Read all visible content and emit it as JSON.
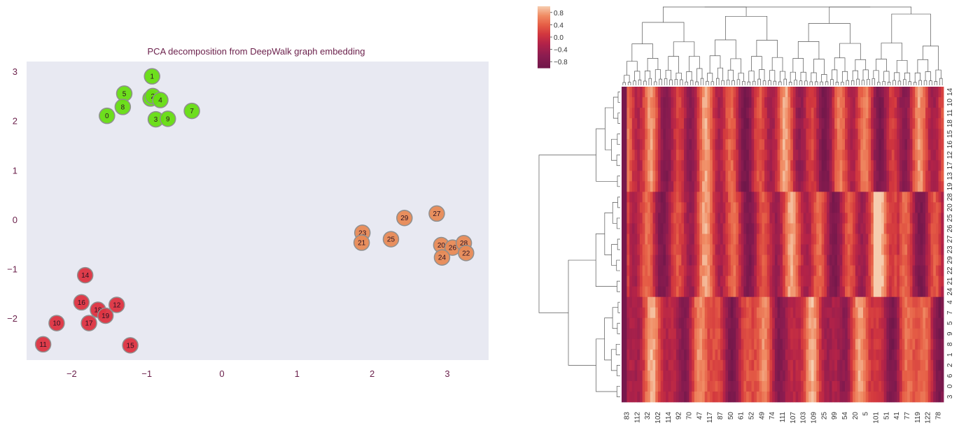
{
  "chart_data": [
    {
      "type": "scatter",
      "title": "PCA decomposition from DeepWalk graph embedding",
      "xlabel": "",
      "ylabel": "",
      "xlim": [
        -2.6,
        3.55
      ],
      "ylim": [
        -2.85,
        3.2
      ],
      "xticks": [
        -2,
        -1,
        0,
        1,
        2,
        3
      ],
      "yticks": [
        -2,
        -1,
        0,
        1,
        2,
        3
      ],
      "x_tick_labels": [
        "−2",
        "−1",
        "0",
        "1",
        "2",
        "3"
      ],
      "y_tick_labels": [
        "−2",
        "−1",
        "0",
        "1",
        "2",
        "3"
      ],
      "grid": false,
      "colors": {
        "cluster_a": "#66dd11",
        "cluster_b": "#dd3340",
        "cluster_c": "#e88a55",
        "plot_bg": "#e8e9f2",
        "text": "#6a1f4a"
      },
      "points": [
        {
          "label": "1",
          "x": -0.93,
          "y": 2.9,
          "cluster": "cluster_a"
        },
        {
          "label": "5",
          "x": -1.3,
          "y": 2.55,
          "cluster": "cluster_a"
        },
        {
          "label": "6",
          "x": -0.95,
          "y": 2.45,
          "cluster": "cluster_a"
        },
        {
          "label": "2",
          "x": -0.92,
          "y": 2.5,
          "cluster": "cluster_a"
        },
        {
          "label": "4",
          "x": -0.82,
          "y": 2.42,
          "cluster": "cluster_a"
        },
        {
          "label": "8",
          "x": -1.32,
          "y": 2.28,
          "cluster": "cluster_a"
        },
        {
          "label": "0",
          "x": -1.53,
          "y": 2.1,
          "cluster": "cluster_a"
        },
        {
          "label": "3",
          "x": -0.88,
          "y": 2.03,
          "cluster": "cluster_a"
        },
        {
          "label": "9",
          "x": -0.72,
          "y": 2.04,
          "cluster": "cluster_a"
        },
        {
          "label": "7",
          "x": -0.4,
          "y": 2.2,
          "cluster": "cluster_a"
        },
        {
          "label": "14",
          "x": -1.82,
          "y": -1.13,
          "cluster": "cluster_b"
        },
        {
          "label": "16",
          "x": -1.87,
          "y": -1.68,
          "cluster": "cluster_b"
        },
        {
          "label": "18",
          "x": -1.65,
          "y": -1.83,
          "cluster": "cluster_b"
        },
        {
          "label": "12",
          "x": -1.4,
          "y": -1.73,
          "cluster": "cluster_b"
        },
        {
          "label": "19",
          "x": -1.55,
          "y": -1.95,
          "cluster": "cluster_b"
        },
        {
          "label": "17",
          "x": -1.77,
          "y": -2.1,
          "cluster": "cluster_b"
        },
        {
          "label": "10",
          "x": -2.2,
          "y": -2.1,
          "cluster": "cluster_b"
        },
        {
          "label": "11",
          "x": -2.38,
          "y": -2.53,
          "cluster": "cluster_b"
        },
        {
          "label": "15",
          "x": -1.22,
          "y": -2.55,
          "cluster": "cluster_b"
        },
        {
          "label": "29",
          "x": 2.43,
          "y": 0.03,
          "cluster": "cluster_c"
        },
        {
          "label": "27",
          "x": 2.86,
          "y": 0.12,
          "cluster": "cluster_c"
        },
        {
          "label": "23",
          "x": 1.87,
          "y": -0.27,
          "cluster": "cluster_c"
        },
        {
          "label": "21",
          "x": 1.86,
          "y": -0.47,
          "cluster": "cluster_c"
        },
        {
          "label": "25",
          "x": 2.25,
          "y": -0.4,
          "cluster": "cluster_c"
        },
        {
          "label": "20",
          "x": 2.92,
          "y": -0.52,
          "cluster": "cluster_c"
        },
        {
          "label": "26",
          "x": 3.07,
          "y": -0.57,
          "cluster": "cluster_c"
        },
        {
          "label": "28",
          "x": 3.22,
          "y": -0.48,
          "cluster": "cluster_c"
        },
        {
          "label": "24",
          "x": 2.93,
          "y": -0.77,
          "cluster": "cluster_c"
        },
        {
          "label": "22",
          "x": 3.25,
          "y": -0.68,
          "cluster": "cluster_c"
        }
      ]
    },
    {
      "type": "heatmap",
      "title": "",
      "colorbar": {
        "min": -1.0,
        "max": 1.0,
        "ticks": [
          0.8,
          0.4,
          0.0,
          -0.4,
          -0.8
        ],
        "tick_labels": [
          "0.8",
          "0.4",
          "0.0",
          "−0.4",
          "−0.8"
        ]
      },
      "row_labels": [
        "14",
        "10",
        "11",
        "18",
        "15",
        "16",
        "12",
        "17",
        "13",
        "19",
        "28",
        "20",
        "25",
        "26",
        "27",
        "23",
        "29",
        "22",
        "21",
        "24",
        "4",
        "7",
        "5",
        "9",
        "8",
        "1",
        "2",
        "6",
        "0",
        "3"
      ],
      "row_clusters": [
        {
          "rows": [
            "14",
            "10",
            "11",
            "18",
            "15",
            "16",
            "12",
            "17",
            "13",
            "19"
          ],
          "profile": "a"
        },
        {
          "rows": [
            "28",
            "20",
            "25",
            "26",
            "27",
            "23",
            "29",
            "22",
            "21",
            "24"
          ],
          "profile": "b"
        },
        {
          "rows": [
            "4",
            "7",
            "5",
            "9",
            "8",
            "1",
            "2",
            "6",
            "0",
            "3"
          ],
          "profile": "c"
        }
      ],
      "col_labels": [
        "83",
        "112",
        "32",
        "102",
        "114",
        "92",
        "70",
        "47",
        "117",
        "87",
        "50",
        "61",
        "52",
        "49",
        "74",
        "111",
        "107",
        "103",
        "109",
        "25",
        "99",
        "54",
        "20",
        "5",
        "101",
        "51",
        "41",
        "77",
        "119",
        "122",
        "78"
      ],
      "column_count": 124
    }
  ]
}
